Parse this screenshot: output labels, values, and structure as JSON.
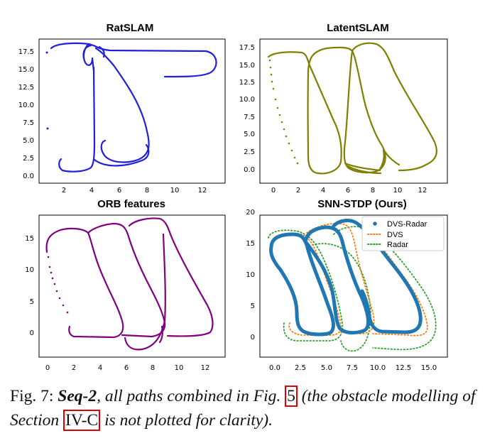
{
  "figure": {
    "panels": [
      {
        "title": "RatSLAM",
        "xticks": [
          "2",
          "4",
          "6",
          "8",
          "10",
          "12"
        ],
        "yticks": [
          "0.0",
          "2.5",
          "5.0",
          "7.5",
          "10.0",
          "12.5",
          "15.0",
          "17.5"
        ],
        "color": "#1f1fe0"
      },
      {
        "title": "LatentSLAM",
        "xticks": [
          "0",
          "2",
          "4",
          "6",
          "8",
          "10",
          "12"
        ],
        "yticks": [
          "0.0",
          "2.5",
          "5.0",
          "7.5",
          "10.0",
          "12.5",
          "15.0",
          "17.5"
        ],
        "color": "#7f7f00"
      },
      {
        "title": "ORB features",
        "xticks": [
          "0",
          "2",
          "4",
          "6",
          "8",
          "10",
          "12"
        ],
        "yticks": [
          "0",
          "5",
          "10",
          "15"
        ],
        "color": "#800080"
      },
      {
        "title": "SNN-STDP (Ours)",
        "xticks": [
          "0.0",
          "2.5",
          "5.0",
          "7.5",
          "10.0",
          "12.5",
          "15.0"
        ],
        "yticks": [
          "0",
          "5",
          "10",
          "15",
          "20"
        ],
        "color": "#1f77b4"
      }
    ],
    "legend": [
      {
        "name": "DVS-Radar",
        "color": "#1f77b4"
      },
      {
        "name": "DVS",
        "color": "#ff7f0e"
      },
      {
        "name": "Radar",
        "color": "#2ca02c"
      }
    ]
  },
  "caption": {
    "prefix": "Fig. 7: ",
    "seq": "Seq-2",
    "part1": ", all paths combined in Fig. ",
    "ref1": "5",
    "part2": " (the obstacle modelling of Section ",
    "ref2": "IV-C",
    "part3": " is not plotted for clarity)."
  }
}
